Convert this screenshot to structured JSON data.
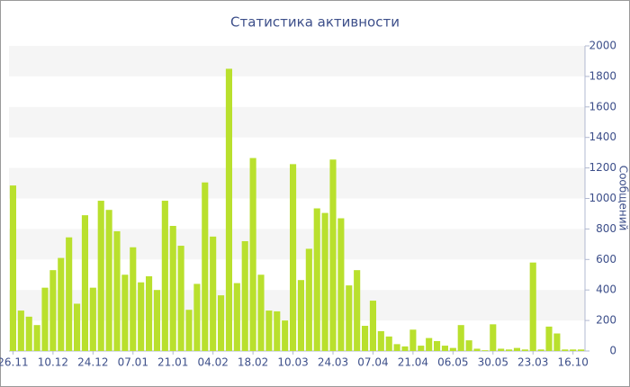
{
  "chart_data": {
    "type": "bar",
    "title": "Статистика активности",
    "y_label": "Сообщений",
    "categories": [
      "26.11",
      null,
      null,
      null,
      null,
      "10.12",
      null,
      null,
      null,
      null,
      "24.12",
      null,
      null,
      null,
      null,
      "07.01",
      null,
      null,
      null,
      null,
      "21.01",
      null,
      null,
      null,
      null,
      "04.02",
      null,
      null,
      null,
      null,
      "18.02",
      null,
      null,
      null,
      null,
      "10.03",
      null,
      null,
      null,
      null,
      "24.03",
      null,
      null,
      null,
      null,
      "07.04",
      null,
      null,
      null,
      null,
      "21.04",
      null,
      null,
      null,
      null,
      "06.05",
      null,
      null,
      null,
      null,
      "30.05",
      null,
      null,
      null,
      null,
      "23.03",
      null,
      null,
      null,
      null,
      "16.10",
      null
    ],
    "values": [
      1085,
      265,
      225,
      170,
      415,
      530,
      610,
      745,
      310,
      890,
      415,
      985,
      925,
      785,
      500,
      680,
      450,
      490,
      400,
      985,
      820,
      690,
      270,
      440,
      1105,
      750,
      365,
      1850,
      445,
      720,
      1265,
      500,
      265,
      260,
      200,
      1225,
      465,
      670,
      935,
      905,
      1255,
      870,
      430,
      530,
      165,
      330,
      130,
      95,
      45,
      30,
      140,
      35,
      85,
      65,
      35,
      20,
      170,
      70,
      15,
      5,
      175,
      15,
      10,
      20,
      10,
      580,
      10,
      160,
      115,
      10,
      10,
      10
    ],
    "color": "#b9e02d",
    "ylim": [
      0,
      2000
    ],
    "yticks": [
      0,
      200,
      400,
      600,
      800,
      1000,
      1200,
      1400,
      1600,
      1800,
      2000
    ],
    "grid": true,
    "y_axis_side": "right"
  }
}
